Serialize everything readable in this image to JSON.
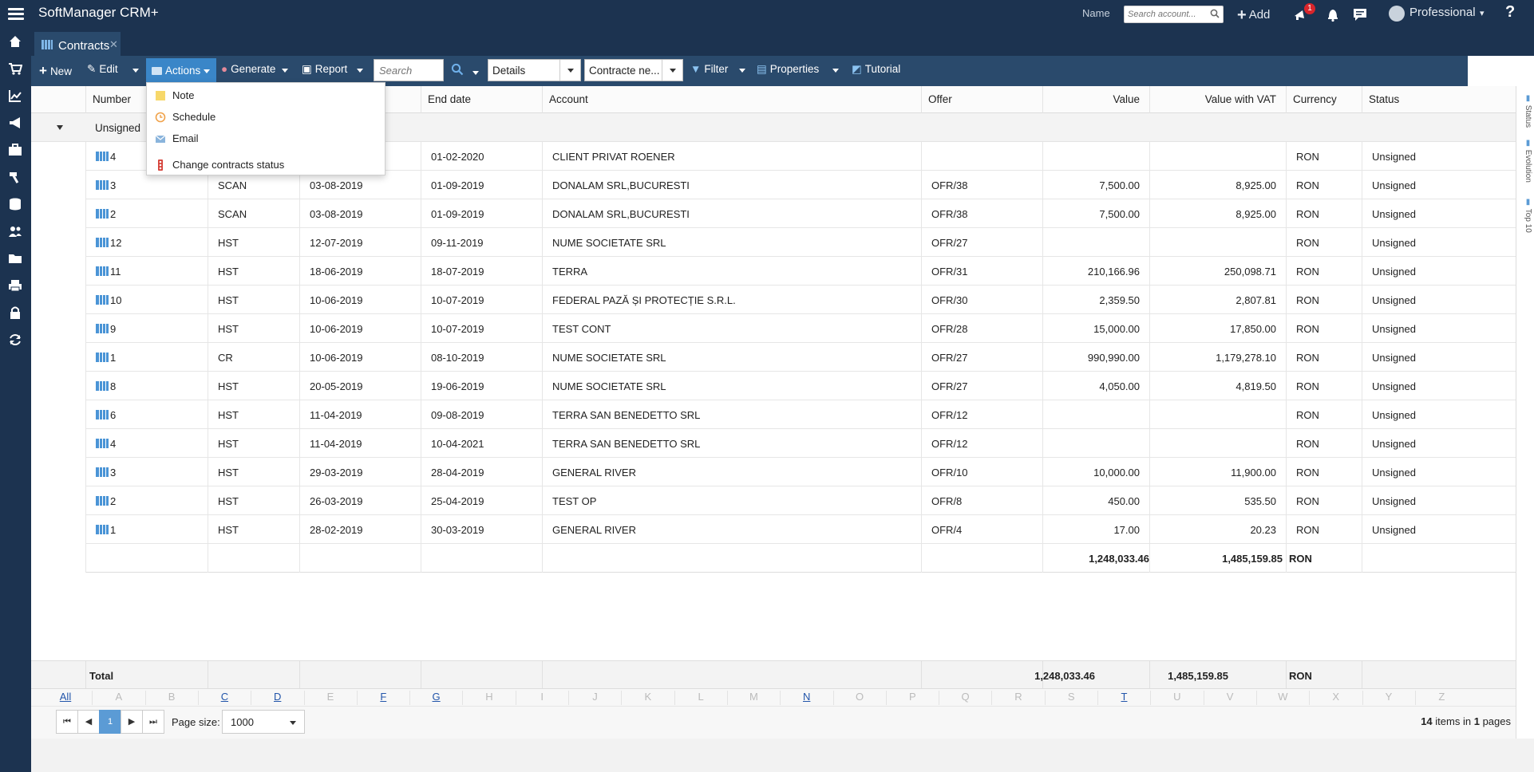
{
  "app": {
    "title": "SoftManager CRM+"
  },
  "topbar": {
    "name_label": "Name",
    "search_placeholder": "Search account...",
    "add_label": "Add",
    "notification_count": "1",
    "profile_label": "Professional",
    "help_label": "?"
  },
  "tabs": [
    {
      "label": "Contracts"
    }
  ],
  "toolbar": {
    "new_label": "New",
    "edit_label": "Edit",
    "actions_label": "Actions",
    "generate_label": "Generate",
    "report_label": "Report",
    "search_placeholder": "Search",
    "view_selected": "Details",
    "layout_selected": "Contracte ne...",
    "filter_label": "Filter",
    "properties_label": "Properties",
    "tutorial_label": "Tutorial"
  },
  "actions_menu": {
    "items": [
      "Note",
      "Schedule",
      "Email",
      "Change contracts status"
    ]
  },
  "grid": {
    "columns": {
      "number": "Number",
      "end_date": "End date",
      "account": "Account",
      "offer": "Offer",
      "value": "Value",
      "value_vat": "Value with VAT",
      "currency": "Currency",
      "status": "Status"
    },
    "group_label": "Unsigned",
    "rows": [
      {
        "number": "4",
        "type": "",
        "start": "",
        "end": "01-02-2020",
        "account": "CLIENT PRIVAT ROENER",
        "offer": "",
        "value": "",
        "value_vat": "",
        "currency": "RON",
        "status": "Unsigned"
      },
      {
        "number": "3",
        "type": "SCAN",
        "start": "03-08-2019",
        "end": "01-09-2019",
        "account": "DONALAM SRL,BUCURESTI",
        "offer": "OFR/38",
        "value": "7,500.00",
        "value_vat": "8,925.00",
        "currency": "RON",
        "status": "Unsigned"
      },
      {
        "number": "2",
        "type": "SCAN",
        "start": "03-08-2019",
        "end": "01-09-2019",
        "account": "DONALAM SRL,BUCURESTI",
        "offer": "OFR/38",
        "value": "7,500.00",
        "value_vat": "8,925.00",
        "currency": "RON",
        "status": "Unsigned"
      },
      {
        "number": "12",
        "type": "HST",
        "start": "12-07-2019",
        "end": "09-11-2019",
        "account": "NUME SOCIETATE SRL",
        "offer": "OFR/27",
        "value": "",
        "value_vat": "",
        "currency": "RON",
        "status": "Unsigned"
      },
      {
        "number": "11",
        "type": "HST",
        "start": "18-06-2019",
        "end": "18-07-2019",
        "account": "TERRA",
        "offer": "OFR/31",
        "value": "210,166.96",
        "value_vat": "250,098.71",
        "currency": "RON",
        "status": "Unsigned"
      },
      {
        "number": "10",
        "type": "HST",
        "start": "10-06-2019",
        "end": "10-07-2019",
        "account": "FEDERAL PAZĂ ȘI PROTECȚIE S.R.L.",
        "offer": "OFR/30",
        "value": "2,359.50",
        "value_vat": "2,807.81",
        "currency": "RON",
        "status": "Unsigned"
      },
      {
        "number": "9",
        "type": "HST",
        "start": "10-06-2019",
        "end": "10-07-2019",
        "account": "TEST CONT",
        "offer": "OFR/28",
        "value": "15,000.00",
        "value_vat": "17,850.00",
        "currency": "RON",
        "status": "Unsigned"
      },
      {
        "number": "1",
        "type": "CR",
        "start": "10-06-2019",
        "end": "08-10-2019",
        "account": "NUME SOCIETATE SRL",
        "offer": "OFR/27",
        "value": "990,990.00",
        "value_vat": "1,179,278.10",
        "currency": "RON",
        "status": "Unsigned"
      },
      {
        "number": "8",
        "type": "HST",
        "start": "20-05-2019",
        "end": "19-06-2019",
        "account": "NUME SOCIETATE SRL",
        "offer": "OFR/27",
        "value": "4,050.00",
        "value_vat": "4,819.50",
        "currency": "RON",
        "status": "Unsigned"
      },
      {
        "number": "6",
        "type": "HST",
        "start": "11-04-2019",
        "end": "09-08-2019",
        "account": "TERRA SAN BENEDETTO SRL",
        "offer": "OFR/12",
        "value": "",
        "value_vat": "",
        "currency": "RON",
        "status": "Unsigned"
      },
      {
        "number": "4",
        "type": "HST",
        "start": "11-04-2019",
        "end": "10-04-2021",
        "account": "TERRA SAN BENEDETTO SRL",
        "offer": "OFR/12",
        "value": "",
        "value_vat": "",
        "currency": "RON",
        "status": "Unsigned"
      },
      {
        "number": "3",
        "type": "HST",
        "start": "29-03-2019",
        "end": "28-04-2019",
        "account": "GENERAL RIVER",
        "offer": "OFR/10",
        "value": "10,000.00",
        "value_vat": "11,900.00",
        "currency": "RON",
        "status": "Unsigned"
      },
      {
        "number": "2",
        "type": "HST",
        "start": "26-03-2019",
        "end": "25-04-2019",
        "account": "TEST OP",
        "offer": "OFR/8",
        "value": "450.00",
        "value_vat": "535.50",
        "currency": "RON",
        "status": "Unsigned"
      },
      {
        "number": "1",
        "type": "HST",
        "start": "28-02-2019",
        "end": "30-03-2019",
        "account": "GENERAL RIVER",
        "offer": "OFR/4",
        "value": "17.00",
        "value_vat": "20.23",
        "currency": "RON",
        "status": "Unsigned"
      }
    ],
    "group_sum": {
      "value": "1,248,033.46",
      "value_vat": "1,485,159.85",
      "currency": "RON"
    },
    "total": {
      "label": "Total",
      "value": "1,248,033.46",
      "value_vat": "1,485,159.85",
      "currency": "RON"
    }
  },
  "alphabet": {
    "letters": [
      "All",
      "A",
      "B",
      "C",
      "D",
      "E",
      "F",
      "G",
      "H",
      "I",
      "J",
      "K",
      "L",
      "M",
      "N",
      "O",
      "P",
      "Q",
      "R",
      "S",
      "T",
      "U",
      "V",
      "W",
      "X",
      "Y",
      "Z"
    ],
    "active": [
      "All",
      "C",
      "D",
      "F",
      "G",
      "N",
      "T"
    ]
  },
  "pager": {
    "first": "⏮",
    "prev": "◀",
    "current": "1",
    "next": "▶",
    "last": "⏭",
    "page_size_label": "Page size:",
    "page_size_value": "1000",
    "items_count": "14",
    "pages_count": "1",
    "items_text": "items in",
    "pages_text": "pages"
  },
  "right_panel": {
    "items": [
      "Status",
      "Evolution",
      "Top 10"
    ]
  },
  "colors": {
    "navy": "#1c3350",
    "toolbar": "#2a4a6c",
    "accent": "#3a86c8"
  }
}
